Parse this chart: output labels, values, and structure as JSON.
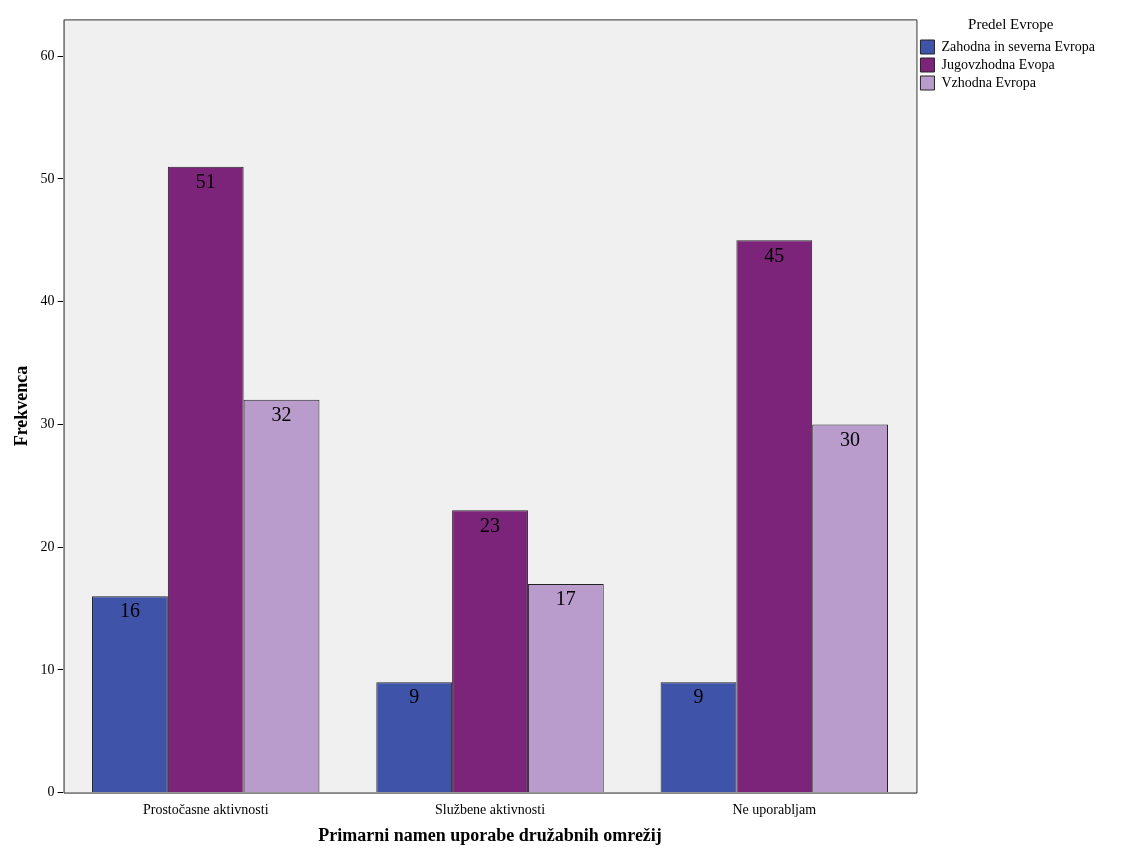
{
  "chart_data": {
    "type": "bar",
    "xlabel": "Primarni namen uporabe družabnih omrežij",
    "ylabel": "Frekvenca",
    "legend_title": "Predel Evrope",
    "categories": [
      "Prostočasne aktivnosti",
      "Službene aktivnosti",
      "Ne uporabljam"
    ],
    "series": [
      {
        "name": "Zahodna in severna Evropa",
        "color": "#3f54a8",
        "values": [
          16,
          9,
          9
        ]
      },
      {
        "name": "Jugovzhodna Evopa",
        "color": "#7b2479",
        "values": [
          51,
          23,
          45
        ]
      },
      {
        "name": "Vzhodna Evropa",
        "color": "#b99ccb",
        "values": [
          32,
          17,
          30
        ]
      }
    ],
    "ylim": [
      0,
      63
    ],
    "yticks": [
      0,
      10,
      20,
      30,
      40,
      50,
      60
    ],
    "grid": false,
    "legend": "top right",
    "data_labels": true
  }
}
